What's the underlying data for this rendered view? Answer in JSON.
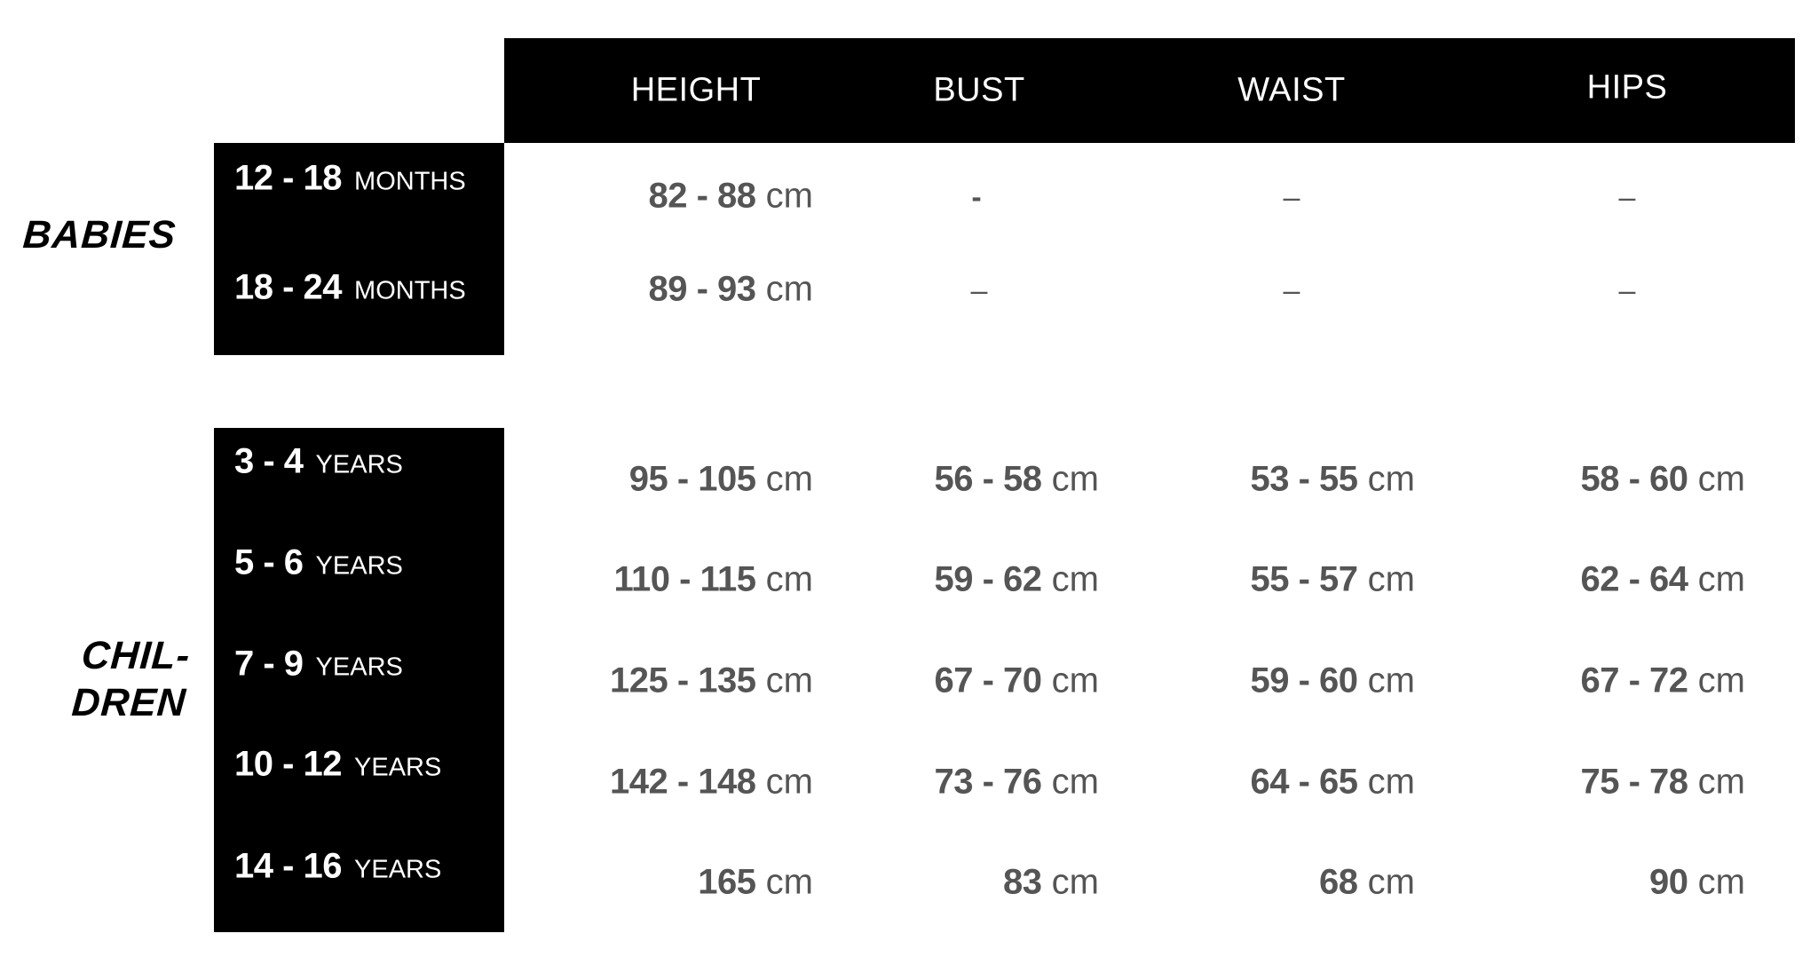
{
  "headers": [
    "HEIGHT",
    "BUST",
    "WAIST",
    "HIPS"
  ],
  "groups": [
    {
      "name": "BABIES",
      "rows": [
        {
          "range": "12 - 18",
          "unit": "MONTHS",
          "height": {
            "n": "82 - 88",
            "u": "cm"
          },
          "bust": "-",
          "waist": "–",
          "hips": "–"
        },
        {
          "range": "18 - 24",
          "unit": "MONTHS",
          "height": {
            "n": "89 - 93",
            "u": "cm"
          },
          "bust": "–",
          "waist": "–",
          "hips": "–"
        }
      ]
    },
    {
      "name_lines": [
        "CHIL-",
        "DREN"
      ],
      "rows": [
        {
          "range": "3 - 4",
          "unit": "YEARS",
          "height": {
            "n": "95 - 105",
            "u": "cm"
          },
          "bust": {
            "n": "56 - 58",
            "u": "cm"
          },
          "waist": {
            "n": "53 - 55",
            "u": "cm"
          },
          "hips": {
            "n": "58 - 60",
            "u": "cm"
          }
        },
        {
          "range": "5 - 6",
          "unit": "YEARS",
          "height": {
            "n": "110 - 115",
            "u": "cm"
          },
          "bust": {
            "n": "59 - 62",
            "u": "cm"
          },
          "waist": {
            "n": "55 - 57",
            "u": "cm"
          },
          "hips": {
            "n": "62 - 64",
            "u": "cm"
          }
        },
        {
          "range": "7 - 9",
          "unit": "YEARS",
          "height": {
            "n": "125 - 135",
            "u": "cm"
          },
          "bust": {
            "n": "67 - 70",
            "u": "cm"
          },
          "waist": {
            "n": "59 - 60",
            "u": "cm"
          },
          "hips": {
            "n": "67 - 72",
            "u": "cm"
          }
        },
        {
          "range": "10 - 12",
          "unit": "YEARS",
          "height": {
            "n": "142 - 148",
            "u": "cm"
          },
          "bust": {
            "n": "73 - 76",
            "u": "cm"
          },
          "waist": {
            "n": "64 - 65",
            "u": "cm"
          },
          "hips": {
            "n": "75 - 78",
            "u": "cm"
          }
        },
        {
          "range": "14 - 16",
          "unit": "YEARS",
          "height": {
            "n": "165",
            "u": "cm"
          },
          "bust": {
            "n": "83",
            "u": "cm"
          },
          "waist": {
            "n": "68",
            "u": "cm"
          },
          "hips": {
            "n": "90",
            "u": "cm"
          }
        }
      ]
    }
  ]
}
